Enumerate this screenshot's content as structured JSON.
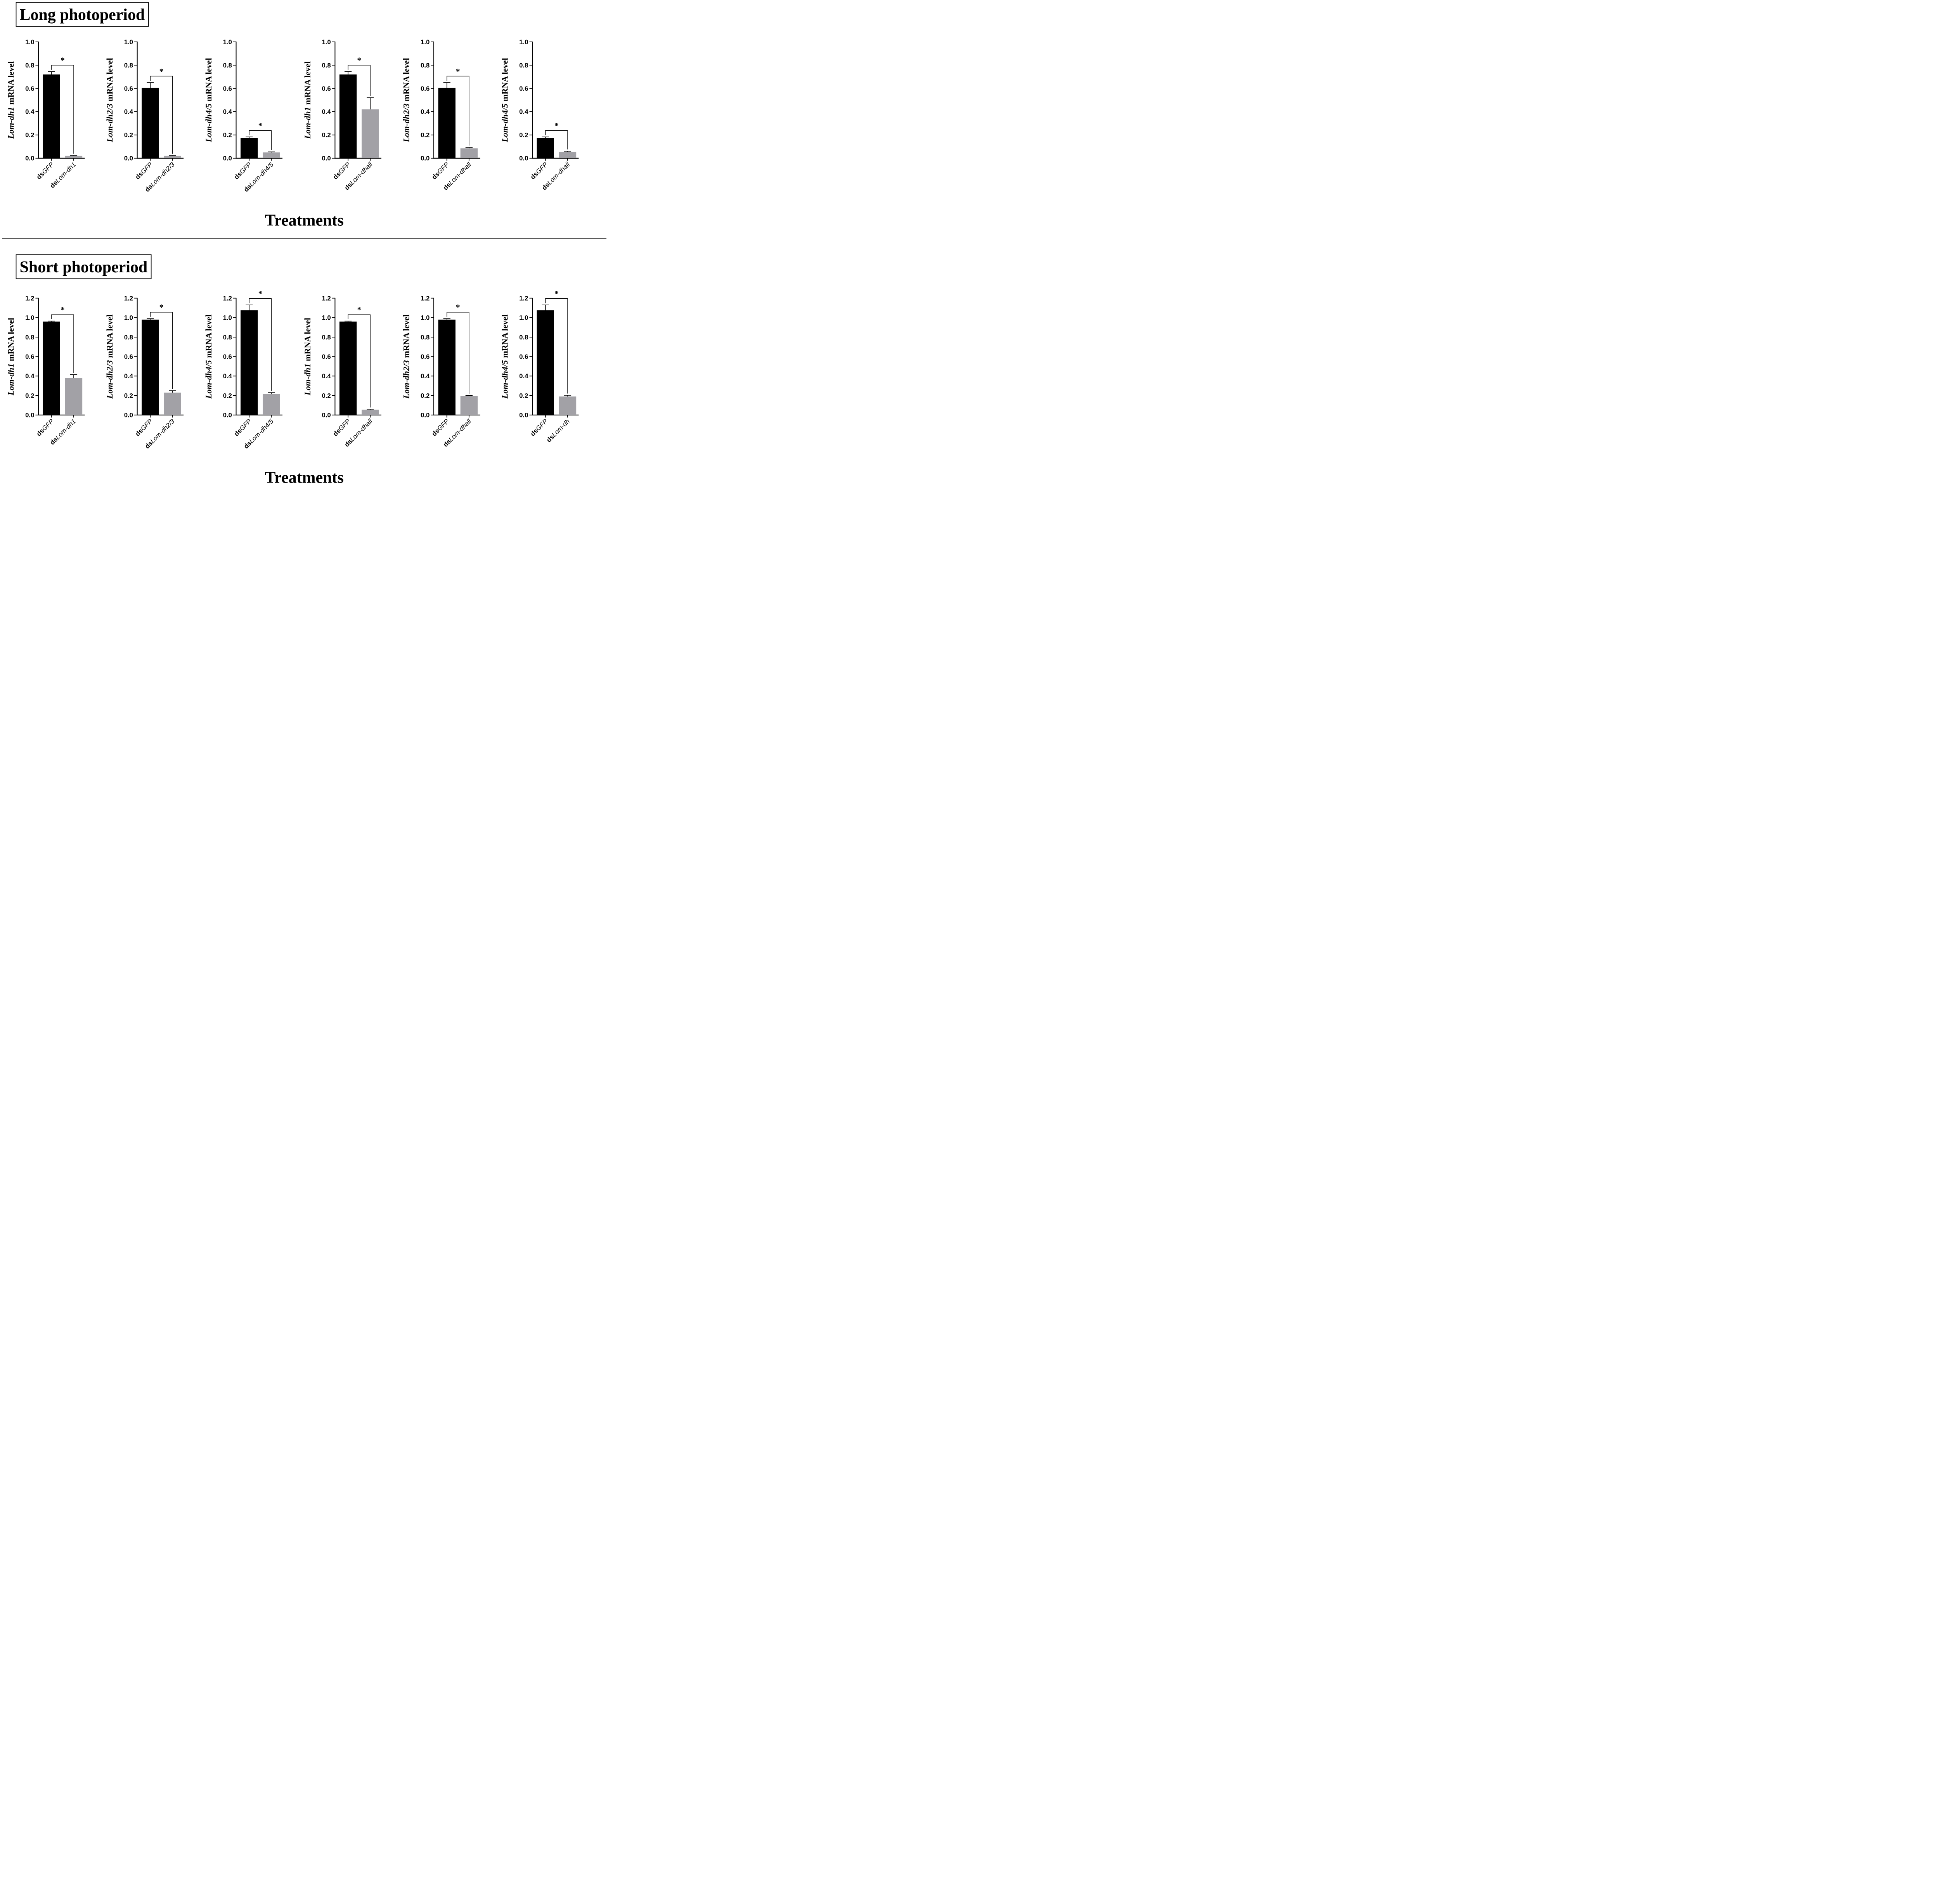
{
  "titles": {
    "long": "Long photoperiod",
    "short": "Short photoperiod"
  },
  "xlabel": "Treatments",
  "colors": {
    "control": "#000000",
    "treated": "#a2a1a6",
    "axis": "#000000"
  },
  "chart_data": [
    {
      "type": "bar",
      "panel": "Long photoperiod",
      "ylabel": {
        "gene": "Lom-dh1",
        "rest": " mRNA level"
      },
      "ylim": [
        0,
        1.0
      ],
      "yticks": [
        "0.0",
        "0.2",
        "0.4",
        "0.6",
        "0.8",
        "1.0"
      ],
      "categories": [
        {
          "prefix": "ds",
          "name": "GFP"
        },
        {
          "prefix": "ds",
          "name": "Lom-dh1"
        }
      ],
      "values": [
        0.72,
        0.02
      ],
      "errors": [
        0.025,
        0.003
      ],
      "significance": "*"
    },
    {
      "type": "bar",
      "panel": "Long photoperiod",
      "ylabel": {
        "gene": "Lom-dh2/3",
        "rest": " mRNA level"
      },
      "ylim": [
        0,
        1.0
      ],
      "yticks": [
        "0.0",
        "0.2",
        "0.4",
        "0.6",
        "0.8",
        "1.0"
      ],
      "categories": [
        {
          "prefix": "ds",
          "name": "GFP"
        },
        {
          "prefix": "ds",
          "name": "Lom-dh2/3"
        }
      ],
      "values": [
        0.605,
        0.02
      ],
      "errors": [
        0.045,
        0.003
      ],
      "significance": "*"
    },
    {
      "type": "bar",
      "panel": "Long photoperiod",
      "ylabel": {
        "gene": "Lom-dh4/5",
        "rest": " mRNA level"
      },
      "ylim": [
        0,
        1.0
      ],
      "yticks": [
        "0.0",
        "0.2",
        "0.4",
        "0.6",
        "0.8",
        "1.0"
      ],
      "categories": [
        {
          "prefix": "ds",
          "name": "GFP"
        },
        {
          "prefix": "ds",
          "name": "Lom-dh4/5"
        }
      ],
      "values": [
        0.175,
        0.05
      ],
      "errors": [
        0.008,
        0.005
      ],
      "significance": "*"
    },
    {
      "type": "bar",
      "panel": "Long photoperiod",
      "ylabel": {
        "gene": "Lom-dh1",
        "rest": " mRNA level"
      },
      "ylim": [
        0,
        1.0
      ],
      "yticks": [
        "0.0",
        "0.2",
        "0.4",
        "0.6",
        "0.8",
        "1.0"
      ],
      "categories": [
        {
          "prefix": "ds",
          "name": "GFP"
        },
        {
          "prefix": "ds",
          "name": "Lom-dhall"
        }
      ],
      "values": [
        0.72,
        0.42
      ],
      "errors": [
        0.025,
        0.1
      ],
      "significance": "*"
    },
    {
      "type": "bar",
      "panel": "Long photoperiod",
      "ylabel": {
        "gene": "Lom-dh2/3",
        "rest": " mRNA level"
      },
      "ylim": [
        0,
        1.0
      ],
      "yticks": [
        "0.0",
        "0.2",
        "0.4",
        "0.6",
        "0.8",
        "1.0"
      ],
      "categories": [
        {
          "prefix": "ds",
          "name": "GFP"
        },
        {
          "prefix": "ds",
          "name": "Lom-dhall"
        }
      ],
      "values": [
        0.605,
        0.085
      ],
      "errors": [
        0.045,
        0.008
      ],
      "significance": "*"
    },
    {
      "type": "bar",
      "panel": "Long photoperiod",
      "ylabel": {
        "gene": "Lom-dh4/5",
        "rest": " mRNA level"
      },
      "ylim": [
        0,
        1.0
      ],
      "yticks": [
        "0.0",
        "0.2",
        "0.4",
        "0.6",
        "0.8",
        "1.0"
      ],
      "categories": [
        {
          "prefix": "ds",
          "name": "GFP"
        },
        {
          "prefix": "ds",
          "name": "Lom-dhall"
        }
      ],
      "values": [
        0.175,
        0.055
      ],
      "errors": [
        0.008,
        0.005
      ],
      "significance": "*"
    },
    {
      "type": "bar",
      "panel": "Short photoperiod",
      "ylabel": {
        "gene": "Lom-dh1",
        "rest": " mRNA level"
      },
      "ylim": [
        0,
        1.2
      ],
      "yticks": [
        "0.0",
        "0.2",
        "0.4",
        "0.6",
        "0.8",
        "1.0",
        "1.2"
      ],
      "categories": [
        {
          "prefix": "ds",
          "name": "GFP"
        },
        {
          "prefix": "ds",
          "name": "Lom-dh1"
        }
      ],
      "values": [
        0.96,
        0.38
      ],
      "errors": [
        0.005,
        0.035
      ],
      "significance": "*"
    },
    {
      "type": "bar",
      "panel": "Short photoperiod",
      "ylabel": {
        "gene": "Lom-dh2/3",
        "rest": " mRNA level"
      },
      "ylim": [
        0,
        1.2
      ],
      "yticks": [
        "0.0",
        "0.2",
        "0.4",
        "0.6",
        "0.8",
        "1.0",
        "1.2"
      ],
      "categories": [
        {
          "prefix": "ds",
          "name": "GFP"
        },
        {
          "prefix": "ds",
          "name": "Lom-dh2/3"
        }
      ],
      "values": [
        0.98,
        0.23
      ],
      "errors": [
        0.01,
        0.02
      ],
      "significance": "*"
    },
    {
      "type": "bar",
      "panel": "Short photoperiod",
      "ylabel": {
        "gene": "Lom-dh4/5",
        "rest": " mRNA level"
      },
      "ylim": [
        0,
        1.2
      ],
      "yticks": [
        "0.0",
        "0.2",
        "0.4",
        "0.6",
        "0.8",
        "1.0",
        "1.2"
      ],
      "categories": [
        {
          "prefix": "ds",
          "name": "GFP"
        },
        {
          "prefix": "ds",
          "name": "Lom-dh4/5"
        }
      ],
      "values": [
        1.075,
        0.215
      ],
      "errors": [
        0.055,
        0.015
      ],
      "significance": "*"
    },
    {
      "type": "bar",
      "panel": "Short photoperiod",
      "ylabel": {
        "gene": "Lom-dh1",
        "rest": " mRNA level"
      },
      "ylim": [
        0,
        1.2
      ],
      "yticks": [
        "0.0",
        "0.2",
        "0.4",
        "0.6",
        "0.8",
        "1.0",
        "1.2"
      ],
      "categories": [
        {
          "prefix": "ds",
          "name": "GFP"
        },
        {
          "prefix": "ds",
          "name": "Lom-dhall"
        }
      ],
      "values": [
        0.96,
        0.055
      ],
      "errors": [
        0.005,
        0.004
      ],
      "significance": "*"
    },
    {
      "type": "bar",
      "panel": "Short photoperiod",
      "ylabel": {
        "gene": "Lom-dh2/3",
        "rest": " mRNA level"
      },
      "ylim": [
        0,
        1.2
      ],
      "yticks": [
        "0.0",
        "0.2",
        "0.4",
        "0.6",
        "0.8",
        "1.0",
        "1.2"
      ],
      "categories": [
        {
          "prefix": "ds",
          "name": "GFP"
        },
        {
          "prefix": "ds",
          "name": "Lom-dhall"
        }
      ],
      "values": [
        0.98,
        0.195
      ],
      "errors": [
        0.01,
        0.005
      ],
      "significance": "*"
    },
    {
      "type": "bar",
      "panel": "Short photoperiod",
      "ylabel": {
        "gene": "Lom-dh4/5",
        "rest": " mRNA level"
      },
      "ylim": [
        0,
        1.2
      ],
      "yticks": [
        "0.0",
        "0.2",
        "0.4",
        "0.6",
        "0.8",
        "1.0",
        "1.2"
      ],
      "categories": [
        {
          "prefix": "ds",
          "name": "GFP"
        },
        {
          "prefix": "ds",
          "name": "Lom-dh"
        }
      ],
      "values": [
        1.075,
        0.19
      ],
      "errors": [
        0.055,
        0.012
      ],
      "significance": "*"
    }
  ]
}
